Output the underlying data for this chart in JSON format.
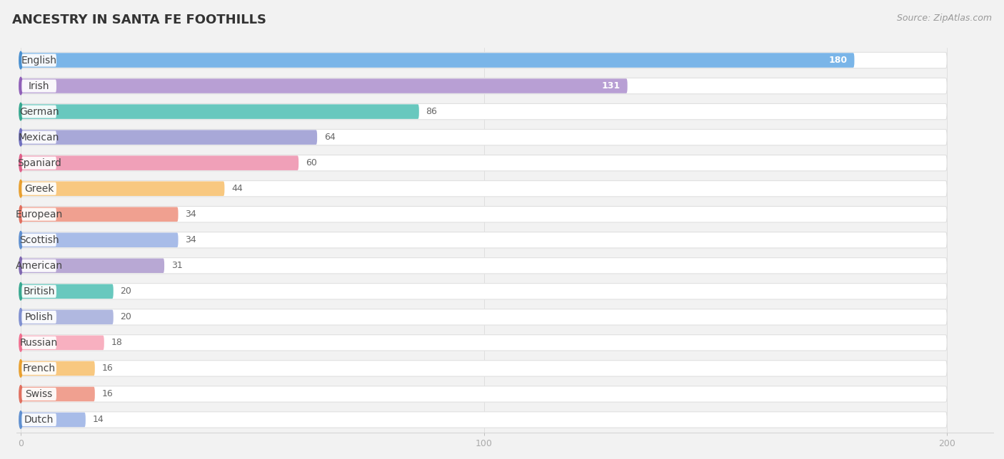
{
  "title": "ANCESTRY IN SANTA FE FOOTHILLS",
  "source": "Source: ZipAtlas.com",
  "categories": [
    "English",
    "Irish",
    "German",
    "Mexican",
    "Spaniard",
    "Greek",
    "European",
    "Scottish",
    "American",
    "British",
    "Polish",
    "Russian",
    "French",
    "Swiss",
    "Dutch"
  ],
  "values": [
    180,
    131,
    86,
    64,
    60,
    44,
    34,
    34,
    31,
    20,
    20,
    18,
    16,
    16,
    14
  ],
  "bar_colors": [
    "#7ab5e8",
    "#b89fd4",
    "#68c8be",
    "#a8a8d8",
    "#f0a0b8",
    "#f8c880",
    "#f0a090",
    "#a8bce8",
    "#b8a8d4",
    "#68c8be",
    "#b0b8e0",
    "#f8b0c0",
    "#f8c880",
    "#f0a090",
    "#a8bce8"
  ],
  "dot_colors": [
    "#4a90d0",
    "#9060b8",
    "#38a890",
    "#7070c0",
    "#e0608a",
    "#e8a030",
    "#e07060",
    "#6090d0",
    "#8068b0",
    "#38a890",
    "#8090d0",
    "#f07090",
    "#e8a030",
    "#e07060",
    "#6090d0"
  ],
  "background_color": "#f2f2f2",
  "row_bg_color": "#ffffff",
  "row_bg_border": "#e0e0e0",
  "title_fontsize": 13,
  "source_fontsize": 9,
  "label_fontsize": 10,
  "value_fontsize": 9,
  "xlim_max": 210,
  "bar_xlim_max": 200,
  "xticks": [
    0,
    100,
    200
  ]
}
